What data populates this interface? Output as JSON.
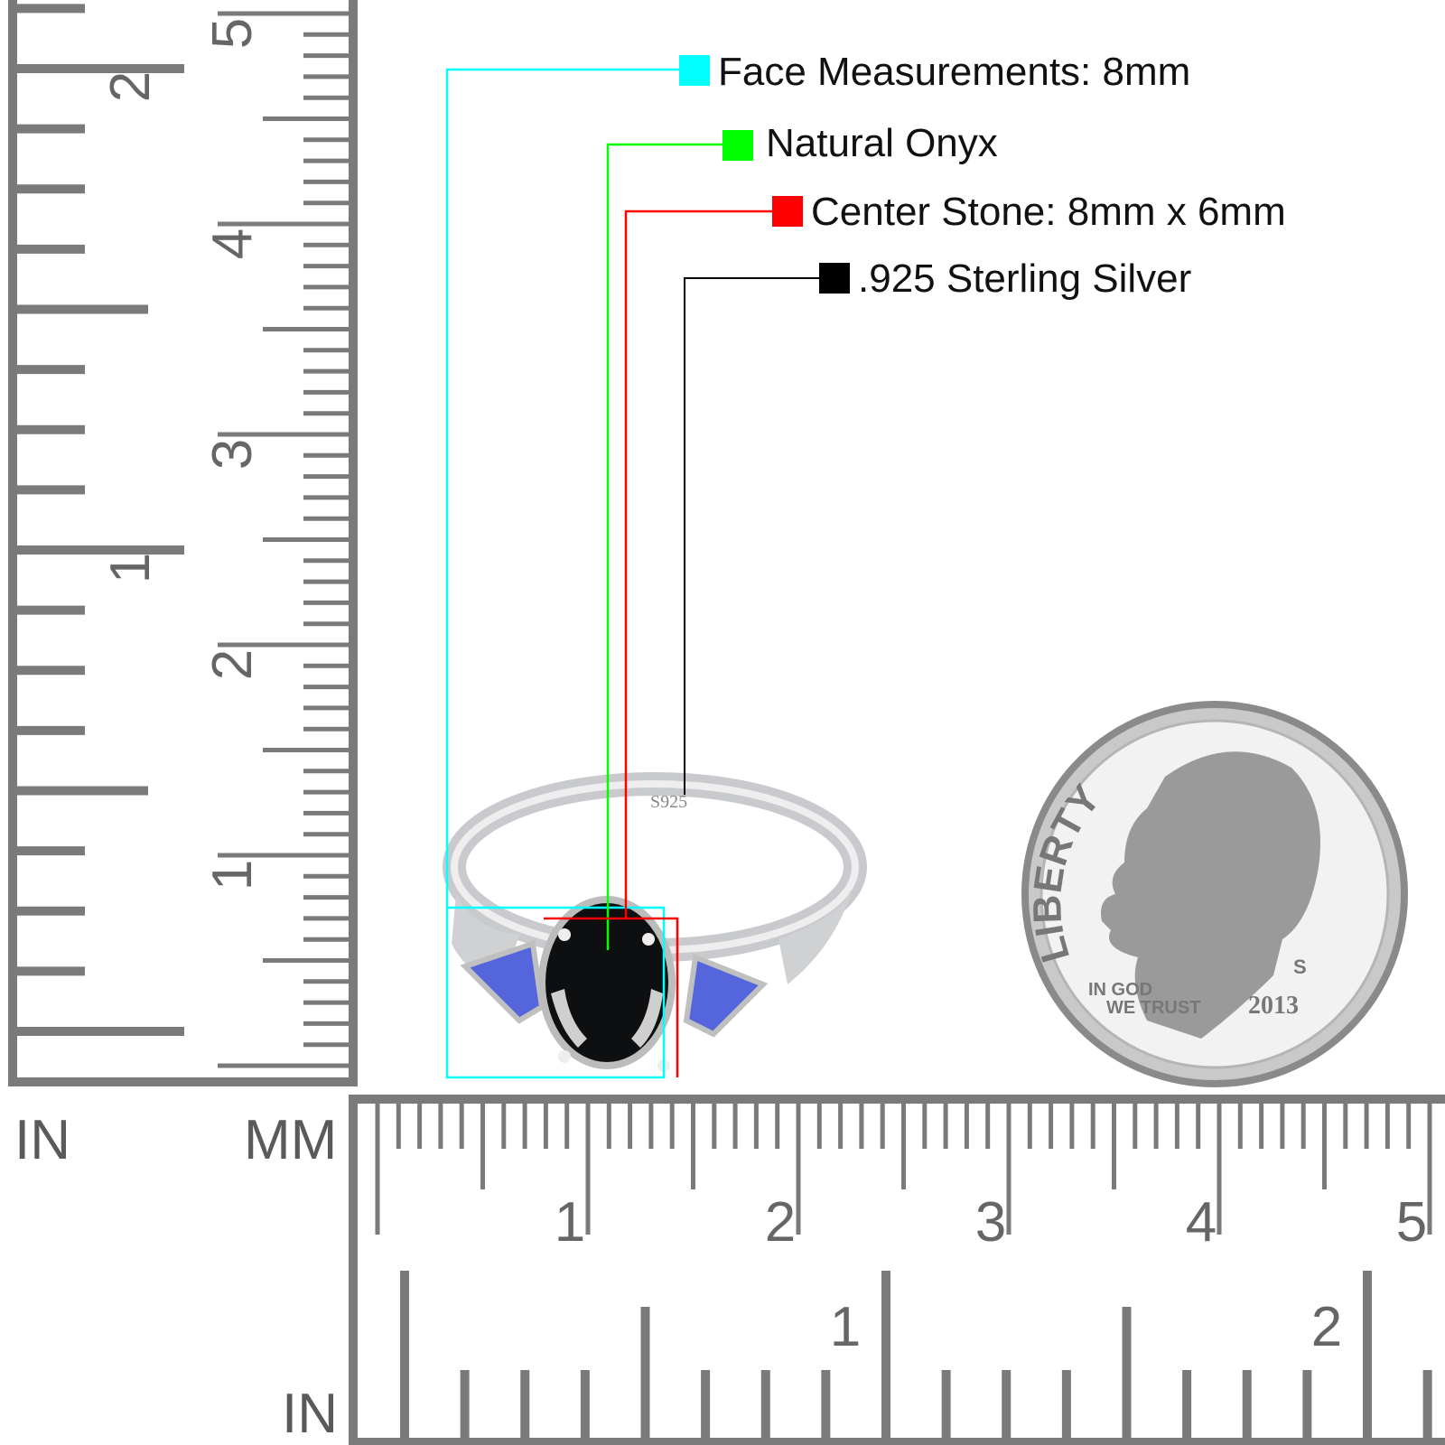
{
  "legend": [
    {
      "label": "Face Measurements: 8mm",
      "color": "#00ffff"
    },
    {
      "label": "Natural Onyx",
      "color": "#00ff00"
    },
    {
      "label": "Center Stone: 8mm x 6mm",
      "color": "#ff0000"
    },
    {
      "label": ".925 Sterling Silver",
      "color": "#000000"
    }
  ],
  "rulers": {
    "left_unit_inch": "IN",
    "left_unit_mm": "MM",
    "bottom_unit_inch": "IN",
    "vertical_mm_labels": [
      "1",
      "2",
      "3",
      "4",
      "5"
    ],
    "vertical_inch_labels": [
      "1",
      "2"
    ],
    "horizontal_mm_labels": [
      "1",
      "2",
      "3",
      "4",
      "5"
    ],
    "horizontal_inch_labels": [
      "1",
      "2"
    ],
    "color": "#7a7a7a"
  },
  "ring": {
    "stamp": "S925",
    "metal_color": "#d9dadc",
    "center_stone_color": "#0d0f10",
    "side_stone_color": "#5566dd"
  },
  "coin": {
    "motto_top": "LIBERTY",
    "motto_bottom_1": "IN GOD",
    "motto_bottom_2": "WE TRUST",
    "year": "2013",
    "mint_mark": "S"
  }
}
